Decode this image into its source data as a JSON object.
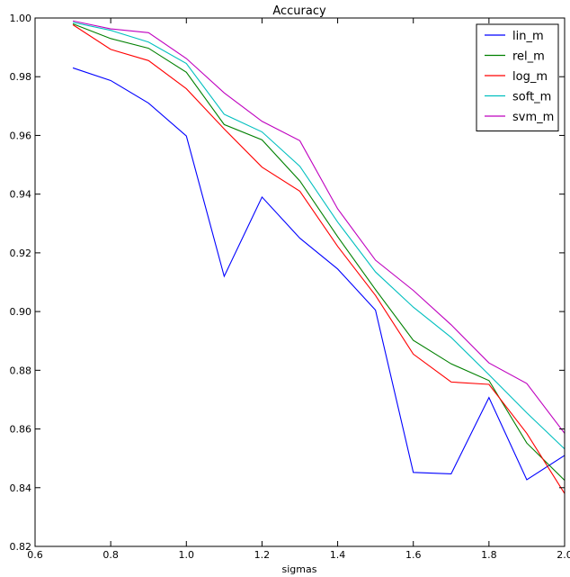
{
  "chart_data": {
    "type": "line",
    "title": "Accuracy",
    "xlabel": "sigmas",
    "ylabel": "",
    "xlim": [
      0.6,
      2.0
    ],
    "ylim": [
      0.82,
      1.0
    ],
    "xticks": [
      0.6,
      0.8,
      1.0,
      1.2,
      1.4,
      1.6,
      1.8,
      2.0
    ],
    "xtick_labels": [
      "0.6",
      "0.8",
      "1.0",
      "1.2",
      "1.4",
      "1.6",
      "1.8",
      "2.0"
    ],
    "yticks": [
      0.82,
      0.84,
      0.86,
      0.88,
      0.9,
      0.92,
      0.94,
      0.96,
      0.98,
      1.0
    ],
    "ytick_labels": [
      "0.82",
      "0.84",
      "0.86",
      "0.88",
      "0.90",
      "0.92",
      "0.94",
      "0.96",
      "0.98",
      "1.00"
    ],
    "grid": false,
    "legend_position": "top-right",
    "x": [
      0.7,
      0.8,
      0.9,
      1.0,
      1.1,
      1.2,
      1.3,
      1.4,
      1.5,
      1.6,
      1.7,
      1.8,
      1.9,
      2.0
    ],
    "series": [
      {
        "name": "lin_m",
        "color": "#0000ff",
        "values": [
          0.983,
          0.9787,
          0.971,
          0.9598,
          0.912,
          0.939,
          0.925,
          0.9145,
          0.9005,
          0.8452,
          0.8447,
          0.8707,
          0.8427,
          0.851
        ]
      },
      {
        "name": "rel_m",
        "color": "#008000",
        "values": [
          0.998,
          0.993,
          0.9897,
          0.9815,
          0.9637,
          0.9585,
          0.9445,
          0.9255,
          0.9075,
          0.8902,
          0.8822,
          0.8765,
          0.8552,
          0.8425
        ]
      },
      {
        "name": "log_m",
        "color": "#ff0000",
        "values": [
          0.9977,
          0.9893,
          0.9855,
          0.9759,
          0.9622,
          0.9492,
          0.941,
          0.9222,
          0.9055,
          0.8855,
          0.876,
          0.8752,
          0.8585,
          0.838
        ]
      },
      {
        "name": "soft_m",
        "color": "#00bfbf",
        "values": [
          0.9985,
          0.9958,
          0.9918,
          0.9845,
          0.9672,
          0.9612,
          0.9495,
          0.9305,
          0.9135,
          0.9015,
          0.8912,
          0.8785,
          0.8655,
          0.8532
        ]
      },
      {
        "name": "svm_m",
        "color": "#bf00bf",
        "values": [
          0.999,
          0.9963,
          0.995,
          0.9862,
          0.9745,
          0.9648,
          0.9582,
          0.935,
          0.9175,
          0.9072,
          0.8955,
          0.8825,
          0.8755,
          0.8585
        ]
      }
    ]
  }
}
